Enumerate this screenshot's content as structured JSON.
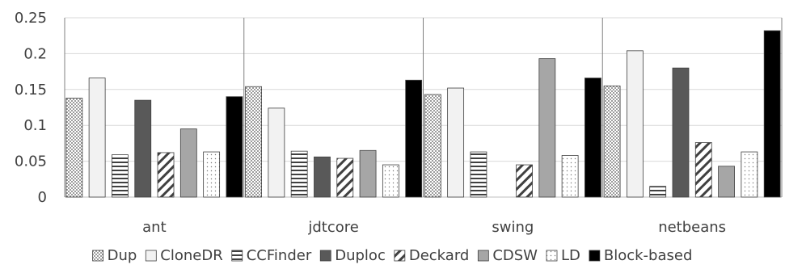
{
  "chart_data": {
    "type": "bar",
    "categories": [
      "ant",
      "jdtcore",
      "swing",
      "netbeans"
    ],
    "series": [
      {
        "name": "Dup",
        "values": [
          0.138,
          0.154,
          0.143,
          0.155
        ],
        "pattern": "dots",
        "color": "#bfbfbf"
      },
      {
        "name": "CloneDR",
        "values": [
          0.166,
          0.124,
          0.152,
          0.204
        ],
        "pattern": "solid",
        "color": "#f2f2f2"
      },
      {
        "name": "CCFinder",
        "values": [
          0.059,
          0.064,
          0.063,
          0.015
        ],
        "pattern": "hlines",
        "color": "#ffffff"
      },
      {
        "name": "Duploc",
        "values": [
          0.135,
          0.056,
          0,
          0.18
        ],
        "pattern": "solid",
        "color": "#595959"
      },
      {
        "name": "Deckard",
        "values": [
          0.062,
          0.054,
          0.045,
          0.076
        ],
        "pattern": "diag",
        "color": "#ffffff"
      },
      {
        "name": "CDSW",
        "values": [
          0.095,
          0.065,
          0.193,
          0.043
        ],
        "pattern": "solid",
        "color": "#a6a6a6"
      },
      {
        "name": "LD",
        "values": [
          0.063,
          0.045,
          0.058,
          0.063
        ],
        "pattern": "sparse-dots",
        "color": "#ffffff"
      },
      {
        "name": "Block-based",
        "values": [
          0.14,
          0.163,
          0.166,
          0.232
        ],
        "pattern": "solid",
        "color": "#000000"
      }
    ],
    "ylim": [
      0,
      0.25
    ],
    "yticks": [
      "0",
      "0.05",
      "0.1",
      "0.15",
      "0.2",
      "0.25"
    ],
    "grid": true,
    "legend": "bottom"
  }
}
